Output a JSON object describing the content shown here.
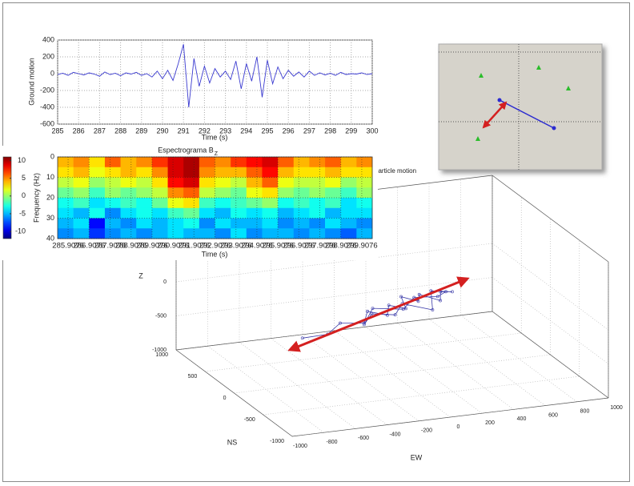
{
  "chart_data": [
    {
      "type": "line",
      "xlabel": "Time (s)",
      "ylabel": "Ground motion",
      "x": [
        285,
        285.25,
        285.5,
        285.75,
        286,
        286.25,
        286.5,
        286.75,
        287,
        287.25,
        287.5,
        287.75,
        288,
        288.25,
        288.5,
        288.75,
        289,
        289.25,
        289.5,
        289.75,
        290,
        290.25,
        290.5,
        290.75,
        291,
        291.25,
        291.5,
        291.75,
        292,
        292.25,
        292.5,
        292.75,
        293,
        293.25,
        293.5,
        293.75,
        294,
        294.25,
        294.5,
        294.75,
        295,
        295.25,
        295.5,
        295.75,
        296,
        296.25,
        296.5,
        296.75,
        297,
        297.25,
        297.5,
        297.75,
        298,
        298.25,
        298.5,
        298.75,
        299,
        299.25,
        299.5,
        299.75,
        300
      ],
      "series": [
        {
          "color": "#3a3ad0",
          "values": [
            -10,
            5,
            -20,
            15,
            0,
            -15,
            10,
            -5,
            -30,
            20,
            -10,
            5,
            -25,
            10,
            -5,
            15,
            -20,
            0,
            -40,
            30,
            -60,
            40,
            -80,
            120,
            350,
            -400,
            180,
            -150,
            90,
            -110,
            60,
            -40,
            30,
            -70,
            150,
            -180,
            120,
            -90,
            200,
            -280,
            160,
            -120,
            80,
            -60,
            40,
            -30,
            20,
            -40,
            30,
            -20,
            10,
            -15,
            5,
            -20,
            15,
            -10,
            0,
            -5,
            10,
            -10,
            0
          ]
        }
      ],
      "xlim": [
        285,
        300
      ],
      "ylim": [
        -600,
        400
      ],
      "xticks": [
        285,
        286,
        287,
        288,
        289,
        290,
        291,
        292,
        293,
        294,
        295,
        296,
        297,
        298,
        299,
        300
      ],
      "yticks": [
        -600,
        -400,
        -200,
        0,
        200,
        400
      ],
      "grid": true
    },
    {
      "type": "heatmap",
      "title": "Espectrograma B",
      "title_subscript": "Z",
      "xlabel": "Time (s)",
      "ylabel": "Frequency (Hz)",
      "xlim": [
        285.4076,
        300.4076
      ],
      "ylim": [
        0,
        40
      ],
      "y_reversed": true,
      "xticks": [
        285.9076,
        286.9076,
        287.9076,
        288.9076,
        289.9076,
        290.9076,
        291.9076,
        292.9076,
        293.9076,
        294.9076,
        295.9076,
        296.9076,
        297.9076,
        298.9076,
        299.9076
      ],
      "yticks": [
        0,
        10,
        20,
        30,
        40
      ],
      "z": [
        [
          4,
          5,
          3,
          6,
          4,
          5,
          7,
          9,
          10,
          6,
          5,
          7,
          8,
          9,
          6,
          4,
          5,
          6,
          4,
          5
        ],
        [
          3,
          4,
          2,
          3,
          4,
          3,
          5,
          9,
          10,
          5,
          4,
          4,
          6,
          8,
          4,
          3,
          3,
          4,
          3,
          3
        ],
        [
          1,
          2,
          0,
          1,
          2,
          1,
          3,
          8,
          9,
          3,
          2,
          1,
          4,
          6,
          2,
          1,
          1,
          2,
          0,
          1
        ],
        [
          -1,
          0,
          -2,
          0,
          -1,
          0,
          1,
          5,
          6,
          1,
          0,
          -1,
          2,
          3,
          0,
          -1,
          0,
          -1,
          -2,
          0
        ],
        [
          -3,
          -2,
          -4,
          -3,
          -2,
          -3,
          -1,
          2,
          3,
          -2,
          -3,
          -2,
          -1,
          0,
          -3,
          -2,
          -3,
          -2,
          -4,
          -3
        ],
        [
          -4,
          -5,
          -3,
          -6,
          -4,
          -3,
          -4,
          -2,
          -1,
          -4,
          -5,
          -3,
          -4,
          -3,
          -5,
          -4,
          -3,
          -5,
          -4,
          -4
        ],
        [
          -5,
          -4,
          -9,
          -5,
          -6,
          -4,
          -5,
          -4,
          -3,
          -6,
          -4,
          -5,
          -5,
          -4,
          -6,
          -5,
          -6,
          -4,
          -5,
          -6
        ],
        [
          -6,
          -5,
          -8,
          -6,
          -5,
          -6,
          -5,
          -4,
          -5,
          -5,
          -6,
          -4,
          -6,
          -5,
          -5,
          -6,
          -5,
          -6,
          -7,
          -5
        ]
      ],
      "colormap": "jet",
      "clim": [
        -12,
        11
      ],
      "colorbar_ticks": [
        -10,
        -5,
        0,
        5,
        10
      ]
    },
    {
      "type": "scatter3d",
      "title": "particle motion",
      "xlabel": "EW",
      "ylabel": "NS",
      "zlabel": "Z",
      "xlim": [
        -1000,
        1000
      ],
      "ylim": [
        -1000,
        1000
      ],
      "zlim": [
        -1000,
        1000
      ],
      "xticks": [
        -1000,
        -800,
        -600,
        -400,
        -200,
        0,
        200,
        400,
        600,
        800,
        1000
      ],
      "yticks": [
        -1000,
        -500,
        0,
        500,
        1000
      ],
      "zticks": [
        -1000,
        -500,
        0
      ],
      "grid": true,
      "series": [
        {
          "color": "#3a3aa8",
          "x": [
            -550,
            -420,
            -300,
            -200,
            -120,
            -60,
            0,
            50,
            100,
            150,
            200,
            260,
            320,
            380,
            300,
            200,
            100,
            0,
            -100,
            -200,
            -80,
            40,
            160,
            280,
            350
          ],
          "y": [
            50,
            -30,
            80,
            -60,
            100,
            -80,
            60,
            -100,
            120,
            -40,
            80,
            -120,
            40,
            0,
            150,
            -150,
            100,
            -50,
            80,
            -60,
            120,
            -80,
            60,
            -20,
            30
          ],
          "z": [
            -350,
            -280,
            -220,
            -160,
            -110,
            -70,
            -30,
            10,
            30,
            50,
            60,
            80,
            90,
            100,
            40,
            -20,
            -60,
            -100,
            -140,
            -180,
            -90,
            -10,
            40,
            70,
            90
          ]
        }
      ]
    }
  ]
}
